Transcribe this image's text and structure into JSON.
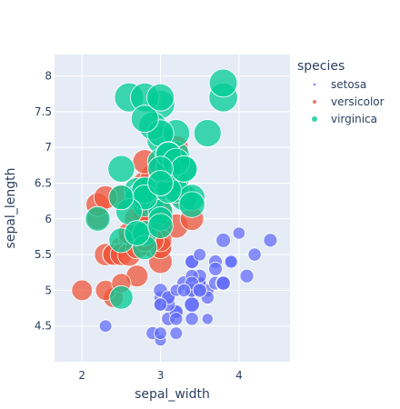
{
  "chart_data": {
    "type": "scatter",
    "xlabel": "sepal_width",
    "ylabel": "sepal_length",
    "xlim": [
      1.65,
      4.65
    ],
    "ylim": [
      4.0,
      8.3
    ],
    "x_ticks": [
      2,
      3,
      4
    ],
    "y_ticks": [
      4.5,
      5,
      5.5,
      6,
      6.5,
      7,
      7.5,
      8
    ],
    "x_tick_labels": [
      "2",
      "3",
      "4"
    ],
    "y_tick_labels": [
      "4.5",
      "5",
      "5.5",
      "6",
      "6.5",
      "7",
      "7.5",
      "8"
    ],
    "legend_title": "species",
    "legend_position": "top-right",
    "grid": true,
    "size_encoding": "petal_length",
    "series": [
      {
        "name": "setosa",
        "color": "#636efa",
        "points": [
          [
            3.5,
            5.1,
            1.4
          ],
          [
            3.0,
            4.9,
            1.4
          ],
          [
            3.2,
            4.7,
            1.3
          ],
          [
            3.1,
            4.6,
            1.5
          ],
          [
            3.6,
            5.0,
            1.4
          ],
          [
            3.9,
            5.4,
            1.7
          ],
          [
            3.4,
            4.6,
            1.4
          ],
          [
            3.4,
            5.0,
            1.5
          ],
          [
            2.9,
            4.4,
            1.4
          ],
          [
            3.1,
            4.9,
            1.5
          ],
          [
            3.7,
            5.4,
            1.5
          ],
          [
            3.4,
            4.8,
            1.6
          ],
          [
            3.0,
            4.8,
            1.4
          ],
          [
            3.0,
            4.3,
            1.1
          ],
          [
            4.0,
            5.8,
            1.2
          ],
          [
            4.4,
            5.7,
            1.5
          ],
          [
            3.9,
            5.4,
            1.3
          ],
          [
            3.5,
            5.1,
            1.4
          ],
          [
            3.8,
            5.7,
            1.7
          ],
          [
            3.8,
            5.1,
            1.5
          ],
          [
            3.4,
            5.4,
            1.7
          ],
          [
            3.7,
            5.1,
            1.5
          ],
          [
            3.6,
            4.6,
            1.0
          ],
          [
            3.3,
            5.1,
            1.7
          ],
          [
            3.4,
            4.8,
            1.9
          ],
          [
            3.0,
            5.0,
            1.6
          ],
          [
            3.4,
            5.0,
            1.6
          ],
          [
            3.5,
            5.2,
            1.5
          ],
          [
            3.4,
            5.2,
            1.4
          ],
          [
            3.2,
            4.7,
            1.6
          ],
          [
            3.1,
            4.8,
            1.6
          ],
          [
            3.4,
            5.4,
            1.5
          ],
          [
            4.1,
            5.2,
            1.5
          ],
          [
            4.2,
            5.5,
            1.4
          ],
          [
            3.1,
            4.9,
            1.5
          ],
          [
            3.2,
            5.0,
            1.2
          ],
          [
            3.5,
            5.5,
            1.3
          ],
          [
            3.6,
            4.9,
            1.4
          ],
          [
            3.0,
            4.4,
            1.3
          ],
          [
            3.4,
            5.1,
            1.5
          ],
          [
            3.5,
            5.0,
            1.3
          ],
          [
            2.3,
            4.5,
            1.3
          ],
          [
            3.2,
            4.4,
            1.3
          ],
          [
            3.5,
            5.0,
            1.6
          ],
          [
            3.8,
            5.1,
            1.9
          ],
          [
            3.0,
            4.8,
            1.4
          ],
          [
            3.8,
            5.1,
            1.6
          ],
          [
            3.2,
            4.6,
            1.4
          ],
          [
            3.7,
            5.3,
            1.5
          ],
          [
            3.3,
            5.0,
            1.4
          ]
        ]
      },
      {
        "name": "versicolor",
        "color": "#ef553b",
        "points": [
          [
            3.2,
            7.0,
            4.7
          ],
          [
            3.2,
            6.4,
            4.5
          ],
          [
            3.1,
            6.9,
            4.9
          ],
          [
            2.3,
            5.5,
            4.0
          ],
          [
            2.8,
            6.5,
            4.6
          ],
          [
            2.8,
            5.7,
            4.5
          ],
          [
            3.3,
            6.3,
            4.7
          ],
          [
            2.4,
            4.9,
            3.3
          ],
          [
            2.9,
            6.6,
            4.6
          ],
          [
            2.7,
            5.2,
            3.9
          ],
          [
            2.0,
            5.0,
            3.5
          ],
          [
            3.0,
            5.9,
            4.2
          ],
          [
            2.2,
            6.0,
            4.0
          ],
          [
            2.9,
            6.1,
            4.7
          ],
          [
            2.9,
            5.6,
            3.6
          ],
          [
            3.1,
            6.7,
            4.4
          ],
          [
            3.0,
            5.6,
            4.5
          ],
          [
            2.7,
            5.8,
            4.1
          ],
          [
            2.2,
            6.2,
            4.5
          ],
          [
            2.5,
            5.6,
            3.9
          ],
          [
            3.2,
            5.9,
            4.8
          ],
          [
            2.8,
            6.1,
            4.0
          ],
          [
            2.5,
            6.3,
            4.9
          ],
          [
            2.8,
            6.1,
            4.7
          ],
          [
            2.9,
            6.4,
            4.3
          ],
          [
            3.0,
            6.6,
            4.4
          ],
          [
            2.8,
            6.8,
            4.8
          ],
          [
            3.0,
            6.7,
            5.0
          ],
          [
            2.9,
            6.0,
            4.5
          ],
          [
            2.6,
            5.7,
            3.5
          ],
          [
            2.4,
            5.5,
            3.8
          ],
          [
            2.4,
            5.5,
            3.7
          ],
          [
            2.7,
            5.8,
            3.9
          ],
          [
            2.7,
            6.0,
            5.1
          ],
          [
            3.0,
            5.4,
            4.5
          ],
          [
            3.4,
            6.0,
            4.5
          ],
          [
            3.1,
            6.7,
            4.7
          ],
          [
            2.3,
            6.3,
            4.4
          ],
          [
            3.0,
            5.6,
            4.1
          ],
          [
            2.5,
            5.5,
            4.0
          ],
          [
            2.6,
            5.5,
            4.4
          ],
          [
            3.0,
            6.1,
            4.6
          ],
          [
            2.6,
            5.8,
            4.0
          ],
          [
            2.3,
            5.0,
            3.3
          ],
          [
            2.7,
            5.6,
            4.2
          ],
          [
            3.0,
            5.7,
            4.2
          ],
          [
            2.9,
            5.7,
            4.2
          ],
          [
            2.9,
            6.2,
            4.3
          ],
          [
            2.5,
            5.1,
            3.0
          ],
          [
            2.8,
            5.7,
            4.1
          ]
        ]
      },
      {
        "name": "virginica",
        "color": "#00cc96",
        "points": [
          [
            3.3,
            6.3,
            6.0
          ],
          [
            2.7,
            5.8,
            5.1
          ],
          [
            3.0,
            7.1,
            5.9
          ],
          [
            2.9,
            6.3,
            5.6
          ],
          [
            3.0,
            6.5,
            5.8
          ],
          [
            3.0,
            7.6,
            6.6
          ],
          [
            2.5,
            4.9,
            4.5
          ],
          [
            2.9,
            7.3,
            6.3
          ],
          [
            2.5,
            6.7,
            5.8
          ],
          [
            3.6,
            7.2,
            6.1
          ],
          [
            3.2,
            6.5,
            5.1
          ],
          [
            2.7,
            6.4,
            5.3
          ],
          [
            3.0,
            6.8,
            5.5
          ],
          [
            2.5,
            5.7,
            5.0
          ],
          [
            2.8,
            5.8,
            5.1
          ],
          [
            3.2,
            6.4,
            5.3
          ],
          [
            3.0,
            6.5,
            5.5
          ],
          [
            3.8,
            7.7,
            6.7
          ],
          [
            2.6,
            7.7,
            6.9
          ],
          [
            2.2,
            6.0,
            5.0
          ],
          [
            3.2,
            6.9,
            5.7
          ],
          [
            2.8,
            5.6,
            4.9
          ],
          [
            2.8,
            7.7,
            6.7
          ],
          [
            2.7,
            6.3,
            4.9
          ],
          [
            3.3,
            6.7,
            5.7
          ],
          [
            3.2,
            7.2,
            6.0
          ],
          [
            2.8,
            6.2,
            4.8
          ],
          [
            3.0,
            6.1,
            4.9
          ],
          [
            2.8,
            6.4,
            5.6
          ],
          [
            3.0,
            7.2,
            5.8
          ],
          [
            2.8,
            7.4,
            6.1
          ],
          [
            3.8,
            7.9,
            6.4
          ],
          [
            2.8,
            6.4,
            5.6
          ],
          [
            2.8,
            6.3,
            5.1
          ],
          [
            2.6,
            6.1,
            5.6
          ],
          [
            3.0,
            7.7,
            6.1
          ],
          [
            3.4,
            6.3,
            5.6
          ],
          [
            3.1,
            6.4,
            5.5
          ],
          [
            3.0,
            6.0,
            4.8
          ],
          [
            3.1,
            6.9,
            5.4
          ],
          [
            3.1,
            6.7,
            5.6
          ],
          [
            3.1,
            6.9,
            5.1
          ],
          [
            2.7,
            5.8,
            5.1
          ],
          [
            3.2,
            6.8,
            5.9
          ],
          [
            3.3,
            6.7,
            5.7
          ],
          [
            3.0,
            6.7,
            5.2
          ],
          [
            2.5,
            6.3,
            5.0
          ],
          [
            3.0,
            6.5,
            5.2
          ],
          [
            3.4,
            6.2,
            5.4
          ],
          [
            3.0,
            5.9,
            5.1
          ]
        ]
      }
    ]
  }
}
